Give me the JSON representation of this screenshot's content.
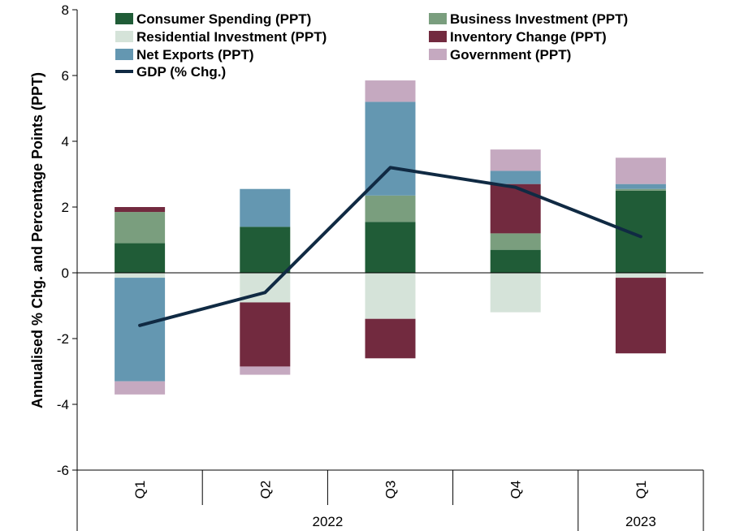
{
  "chart_data": {
    "type": "bar",
    "stacked": true,
    "categories": [
      "Q1",
      "Q2",
      "Q3",
      "Q4",
      "Q1"
    ],
    "category_groups": [
      {
        "label": "2022",
        "span": 4
      },
      {
        "label": "2023",
        "span": 1
      }
    ],
    "ylabel": "Annualised % Chg. and Percentage Points (PPT)",
    "ylim": [
      -6,
      8
    ],
    "yticks": [
      -6,
      -4,
      -2,
      0,
      2,
      4,
      6,
      8
    ],
    "grid": false,
    "legend_position": "top",
    "series": [
      {
        "name": "Consumer Spending (PPT)",
        "color": "#205c37",
        "values": [
          0.9,
          1.4,
          1.55,
          0.7,
          2.5
        ]
      },
      {
        "name": "Business Investment (PPT)",
        "color": "#7a9e7e",
        "values": [
          0.95,
          0.0,
          0.8,
          0.5,
          0.05
        ]
      },
      {
        "name": "Residential Investment (PPT)",
        "color": "#d5e3d9",
        "values": [
          -0.15,
          -0.9,
          -1.4,
          -1.2,
          -0.15
        ]
      },
      {
        "name": "Inventory Change (PPT)",
        "color": "#722a3f",
        "values": [
          0.15,
          -1.95,
          -1.2,
          1.5,
          -2.3
        ]
      },
      {
        "name": "Net Exports (PPT)",
        "color": "#6497b1",
        "values": [
          -3.15,
          1.15,
          2.85,
          0.4,
          0.15
        ]
      },
      {
        "name": "Government (PPT)",
        "color": "#c5a9c0",
        "values": [
          -0.4,
          -0.25,
          0.65,
          0.65,
          0.8
        ]
      }
    ],
    "line_series": {
      "name": "GDP (% Chg.)",
      "color": "#102a43",
      "values": [
        -1.6,
        -0.6,
        3.2,
        2.6,
        1.1
      ]
    }
  }
}
